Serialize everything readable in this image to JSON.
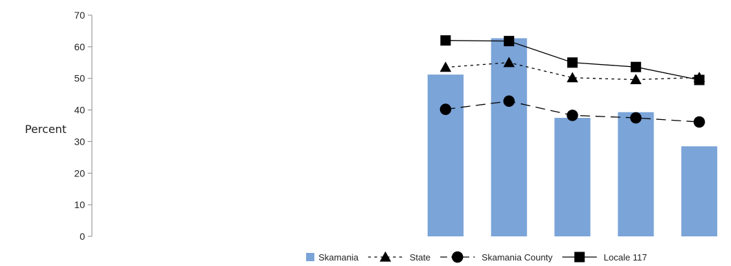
{
  "chart_data": {
    "type": "bar",
    "title": "",
    "xlabel": "",
    "ylabel": "Percent",
    "ylim": [
      0,
      70
    ],
    "yticks": [
      0,
      10,
      20,
      30,
      40,
      50,
      60,
      70
    ],
    "categories": [
      "",
      "",
      "",
      "",
      "",
      "",
      "",
      "",
      "",
      ""
    ],
    "series": [
      {
        "name": "Skamania",
        "kind": "bar",
        "color": "#7ba4d8",
        "values": [
          null,
          null,
          null,
          null,
          null,
          51.2,
          62.7,
          37.5,
          39.3,
          28.5
        ]
      },
      {
        "name": "State",
        "kind": "line",
        "dash": "dotted",
        "marker": "triangle",
        "color": "#000000",
        "values": [
          null,
          null,
          null,
          null,
          null,
          53.5,
          55.0,
          50.2,
          49.6,
          50.3
        ]
      },
      {
        "name": "Skamania County",
        "kind": "line",
        "dash": "dashed",
        "marker": "circle",
        "color": "#000000",
        "values": [
          null,
          null,
          null,
          null,
          null,
          40.2,
          42.8,
          38.3,
          37.5,
          36.2
        ]
      },
      {
        "name": "Locale 117",
        "kind": "line",
        "dash": "solid",
        "marker": "square",
        "color": "#000000",
        "values": [
          null,
          null,
          null,
          null,
          null,
          62.0,
          61.8,
          55.0,
          53.6,
          49.5
        ]
      }
    ],
    "grid": false,
    "legend": "bottom-right"
  }
}
